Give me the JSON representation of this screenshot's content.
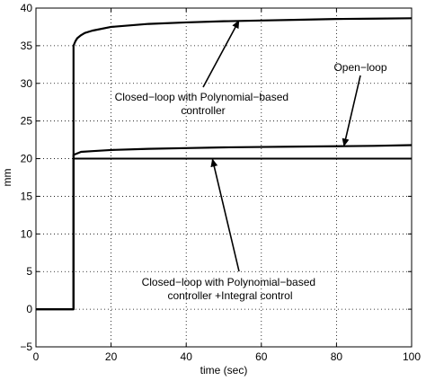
{
  "chart_data": {
    "type": "line",
    "xlabel": "time (sec)",
    "ylabel": "mm",
    "xlim": [
      0,
      100
    ],
    "ylim": [
      -5,
      40
    ],
    "xticks": [
      0,
      20,
      40,
      60,
      80,
      100
    ],
    "yticks": [
      -5,
      0,
      5,
      10,
      15,
      20,
      25,
      30,
      35,
      40
    ],
    "grid": true,
    "legend": "none",
    "series": [
      {
        "name": "Closed-loop with Polynomial-based controller",
        "x": [
          0,
          10,
          10,
          10.5,
          11,
          12,
          13,
          15,
          20,
          30,
          40,
          50,
          60,
          70,
          80,
          90,
          100
        ],
        "y": [
          0,
          0,
          35.0,
          35.6,
          36.0,
          36.4,
          36.7,
          37.0,
          37.5,
          37.9,
          38.1,
          38.25,
          38.35,
          38.45,
          38.55,
          38.6,
          38.65
        ]
      },
      {
        "name": "Open-loop",
        "x": [
          0,
          10,
          10,
          12,
          15,
          20,
          30,
          40,
          50,
          60,
          70,
          80,
          90,
          100
        ],
        "y": [
          0,
          0,
          20.5,
          20.9,
          21.0,
          21.15,
          21.3,
          21.4,
          21.5,
          21.55,
          21.6,
          21.65,
          21.7,
          21.8
        ]
      },
      {
        "name": "Closed-loop with Polynomial-based controller +Integral control",
        "x": [
          0,
          10,
          10,
          100
        ],
        "y": [
          0,
          0,
          20,
          20
        ]
      }
    ],
    "annotations": [
      {
        "id": "upper",
        "lines": [
          "Closed−loop with Polynomial−based",
          "controller"
        ],
        "arrow_to": [
          54,
          38.3
        ]
      },
      {
        "id": "openloop",
        "lines": [
          "Open−loop"
        ],
        "arrow_to": [
          82,
          21.7
        ]
      },
      {
        "id": "integral",
        "lines": [
          "Closed−loop with Polynomial−based",
          "controller +Integral control"
        ],
        "arrow_to": [
          47,
          19.9
        ]
      }
    ]
  }
}
